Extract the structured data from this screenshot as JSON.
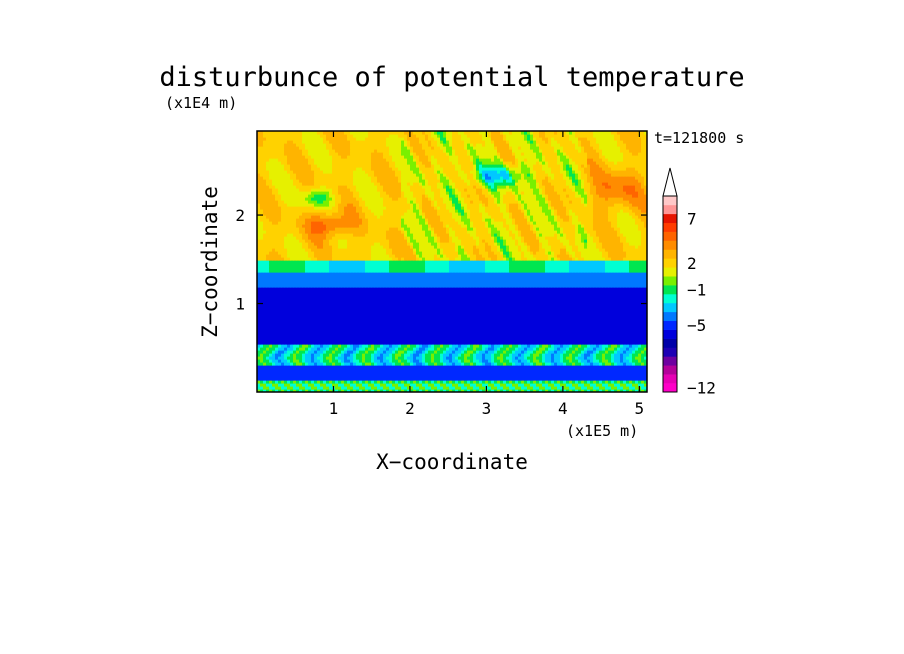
{
  "chart_data": {
    "type": "heatmap",
    "title": "disturbunce of potential temperature",
    "xlabel": "X−coordinate",
    "ylabel": "Z−coordinate",
    "x_unit": "(x1E5 m)",
    "y_unit": "(x1E4 m)",
    "time_label": "t=121800 s",
    "xlim": [
      0,
      5.1
    ],
    "ylim": [
      0,
      2.95
    ],
    "x_ticks": [
      1,
      2,
      3,
      4,
      5
    ],
    "y_ticks": [
      1,
      2
    ],
    "colorbar": {
      "levels": [
        -12,
        -11,
        -10,
        -9,
        -8,
        -7,
        -6,
        -5,
        -4,
        -3,
        -2,
        -1,
        0,
        1,
        2,
        3,
        4,
        5,
        6,
        7,
        8,
        9
      ],
      "tick_labels": [
        "7",
        "2",
        "−1",
        "−5",
        "−12"
      ],
      "tick_values": [
        7,
        2,
        -1,
        -5,
        -12
      ],
      "colors": [
        "#ff00c8",
        "#e600b4",
        "#b4009a",
        "#6e00a0",
        "#1e00b4",
        "#0000a8",
        "#0000dc",
        "#0028ff",
        "#0078ff",
        "#00c8ff",
        "#00ffd2",
        "#00e650",
        "#78f000",
        "#e6f000",
        "#ffd200",
        "#ffb400",
        "#ff8c00",
        "#ff6400",
        "#ff3c00",
        "#e61400",
        "#ff9696",
        "#ffc8c8"
      ],
      "extend": "max"
    },
    "field_summary": [
      {
        "z_range": [
          0.0,
          0.15
        ],
        "value": -1,
        "note": "noisy green/yellow near ground"
      },
      {
        "z_range": [
          0.15,
          0.3
        ],
        "value": -5,
        "note": "thin dark blue band"
      },
      {
        "z_range": [
          0.3,
          0.55
        ],
        "value": -2,
        "note": "cyan/blue convective cells"
      },
      {
        "z_range": [
          0.55,
          1.2
        ],
        "value": -6,
        "note": "deep dark blue layer"
      },
      {
        "z_range": [
          1.2,
          1.35
        ],
        "value": -4,
        "note": "blue"
      },
      {
        "z_range": [
          1.35,
          1.5
        ],
        "value": -2,
        "note": "cyan"
      },
      {
        "z_range": [
          1.5,
          2.95
        ],
        "value": 2,
        "note": "yellow/orange with wave patterns, max ~5 near x=1, z=1.9"
      }
    ]
  }
}
